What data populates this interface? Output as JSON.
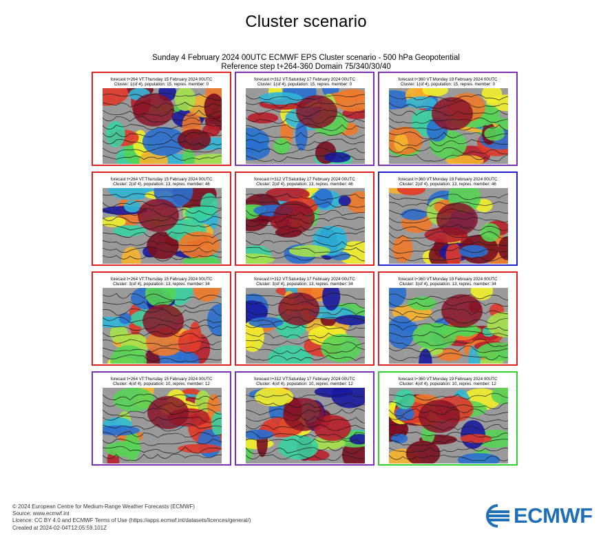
{
  "title": "Cluster scenario",
  "header": {
    "line1": "Sunday 4 February 2024 00UTC ECMWF EPS Cluster scenario - 500 hPa Geopotential",
    "line2": "Reference step t+264-360 Domain 75/340/30/40"
  },
  "colors": {
    "red_border": "#e02020",
    "purple_border": "#7a2fb0",
    "blue_border": "#2020d0",
    "green_border": "#30d030",
    "logo_blue": "#1e6fb8"
  },
  "panels": [
    {
      "border": "red",
      "line1": "forecast t+264 VT:Thursday 15 February 2024 00UTC",
      "line2": "Cluster: 1(of 4), population: 15, repres. member: 0"
    },
    {
      "border": "purple",
      "line1": "forecast t+312 VT:Saturday 17 February 2024 00UTC",
      "line2": "Cluster: 1(of 4), population: 15, repres. member: 0"
    },
    {
      "border": "purple",
      "line1": "forecast t+360 VT:Monday 19 February 2024 00UTC",
      "line2": "Cluster: 1(of 4), population: 15, repres. member: 0"
    },
    {
      "border": "red",
      "line1": "forecast t+264 VT:Thursday 15 February 2024 00UTC",
      "line2": "Cluster: 2(of 4), population: 13, repres. member: 46"
    },
    {
      "border": "red",
      "line1": "forecast t+312 VT:Saturday 17 February 2024 00UTC",
      "line2": "Cluster: 2(of 4), population: 13, repres. member: 46"
    },
    {
      "border": "blue",
      "line1": "forecast t+360 VT:Monday 19 February 2024 00UTC",
      "line2": "Cluster: 2(of 4), population: 13, repres. member: 46"
    },
    {
      "border": "red",
      "line1": "forecast t+264 VT:Thursday 15 February 2024 00UTC",
      "line2": "Cluster: 3(of 4), population: 13, repres. member: 34"
    },
    {
      "border": "red",
      "line1": "forecast t+312 VT:Saturday 17 February 2024 00UTC",
      "line2": "Cluster: 3(of 4), population: 13, repres. member: 34"
    },
    {
      "border": "red",
      "line1": "forecast t+360 VT:Monday 19 February 2024 00UTC",
      "line2": "Cluster: 3(of 4), population: 13, repres. member: 34"
    },
    {
      "border": "purple",
      "line1": "forecast t+264 VT:Thursday 15 February 2024 00UTC",
      "line2": "Cluster: 4(of 4), population: 10, repres. member: 12"
    },
    {
      "border": "purple",
      "line1": "forecast t+312 VT:Saturday 17 February 2024 00UTC",
      "line2": "Cluster: 4(of 4), population: 10, repres. member: 12"
    },
    {
      "border": "green",
      "line1": "forecast t+360 VT:Monday 19 February 2024 00UTC",
      "line2": "Cluster: 4(of 4), population: 10, repres. member: 12"
    }
  ],
  "footer": {
    "line1": "© 2024 European Centre for Medium-Range Weather Forecasts (ECMWF)",
    "line2": "Source: www.ecmwf.int",
    "line3": "Licence: CC BY 4.0 and ECMWF Terms of Use (https://apps.ecmwf.int/datasets/licences/general/)",
    "line4": "Created at 2024-02-04T12:05:59.101Z"
  },
  "logo": {
    "text": "ECMWF"
  }
}
